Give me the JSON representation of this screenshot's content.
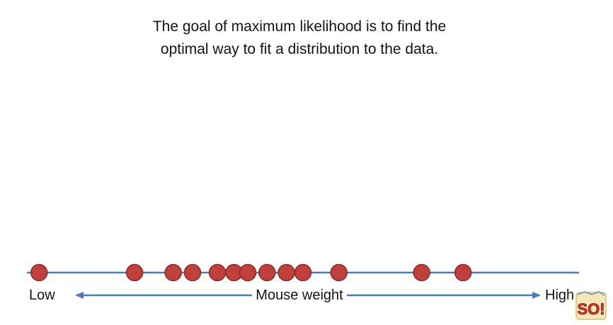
{
  "title": {
    "line1": "The goal of maximum likelihood is to find the",
    "line2": "optimal way to fit a distribution to the data."
  },
  "axis": {
    "low_label": "Low",
    "high_label": "High",
    "center_label": "Mouse weight"
  },
  "data_points": [
    2.2,
    19.5,
    26.5,
    30.0,
    34.5,
    37.5,
    40.0,
    43.5,
    47.0,
    50.0,
    56.5,
    71.5,
    79.0
  ],
  "colors": {
    "axis_line": "#4a7ab8",
    "arrow": "#4a7ab8",
    "point_fill": "#c0403c",
    "point_stroke": "#8b2a27",
    "text": "#141414"
  },
  "logo": {
    "text": "SO!",
    "icon": "statquest-logo-icon"
  }
}
